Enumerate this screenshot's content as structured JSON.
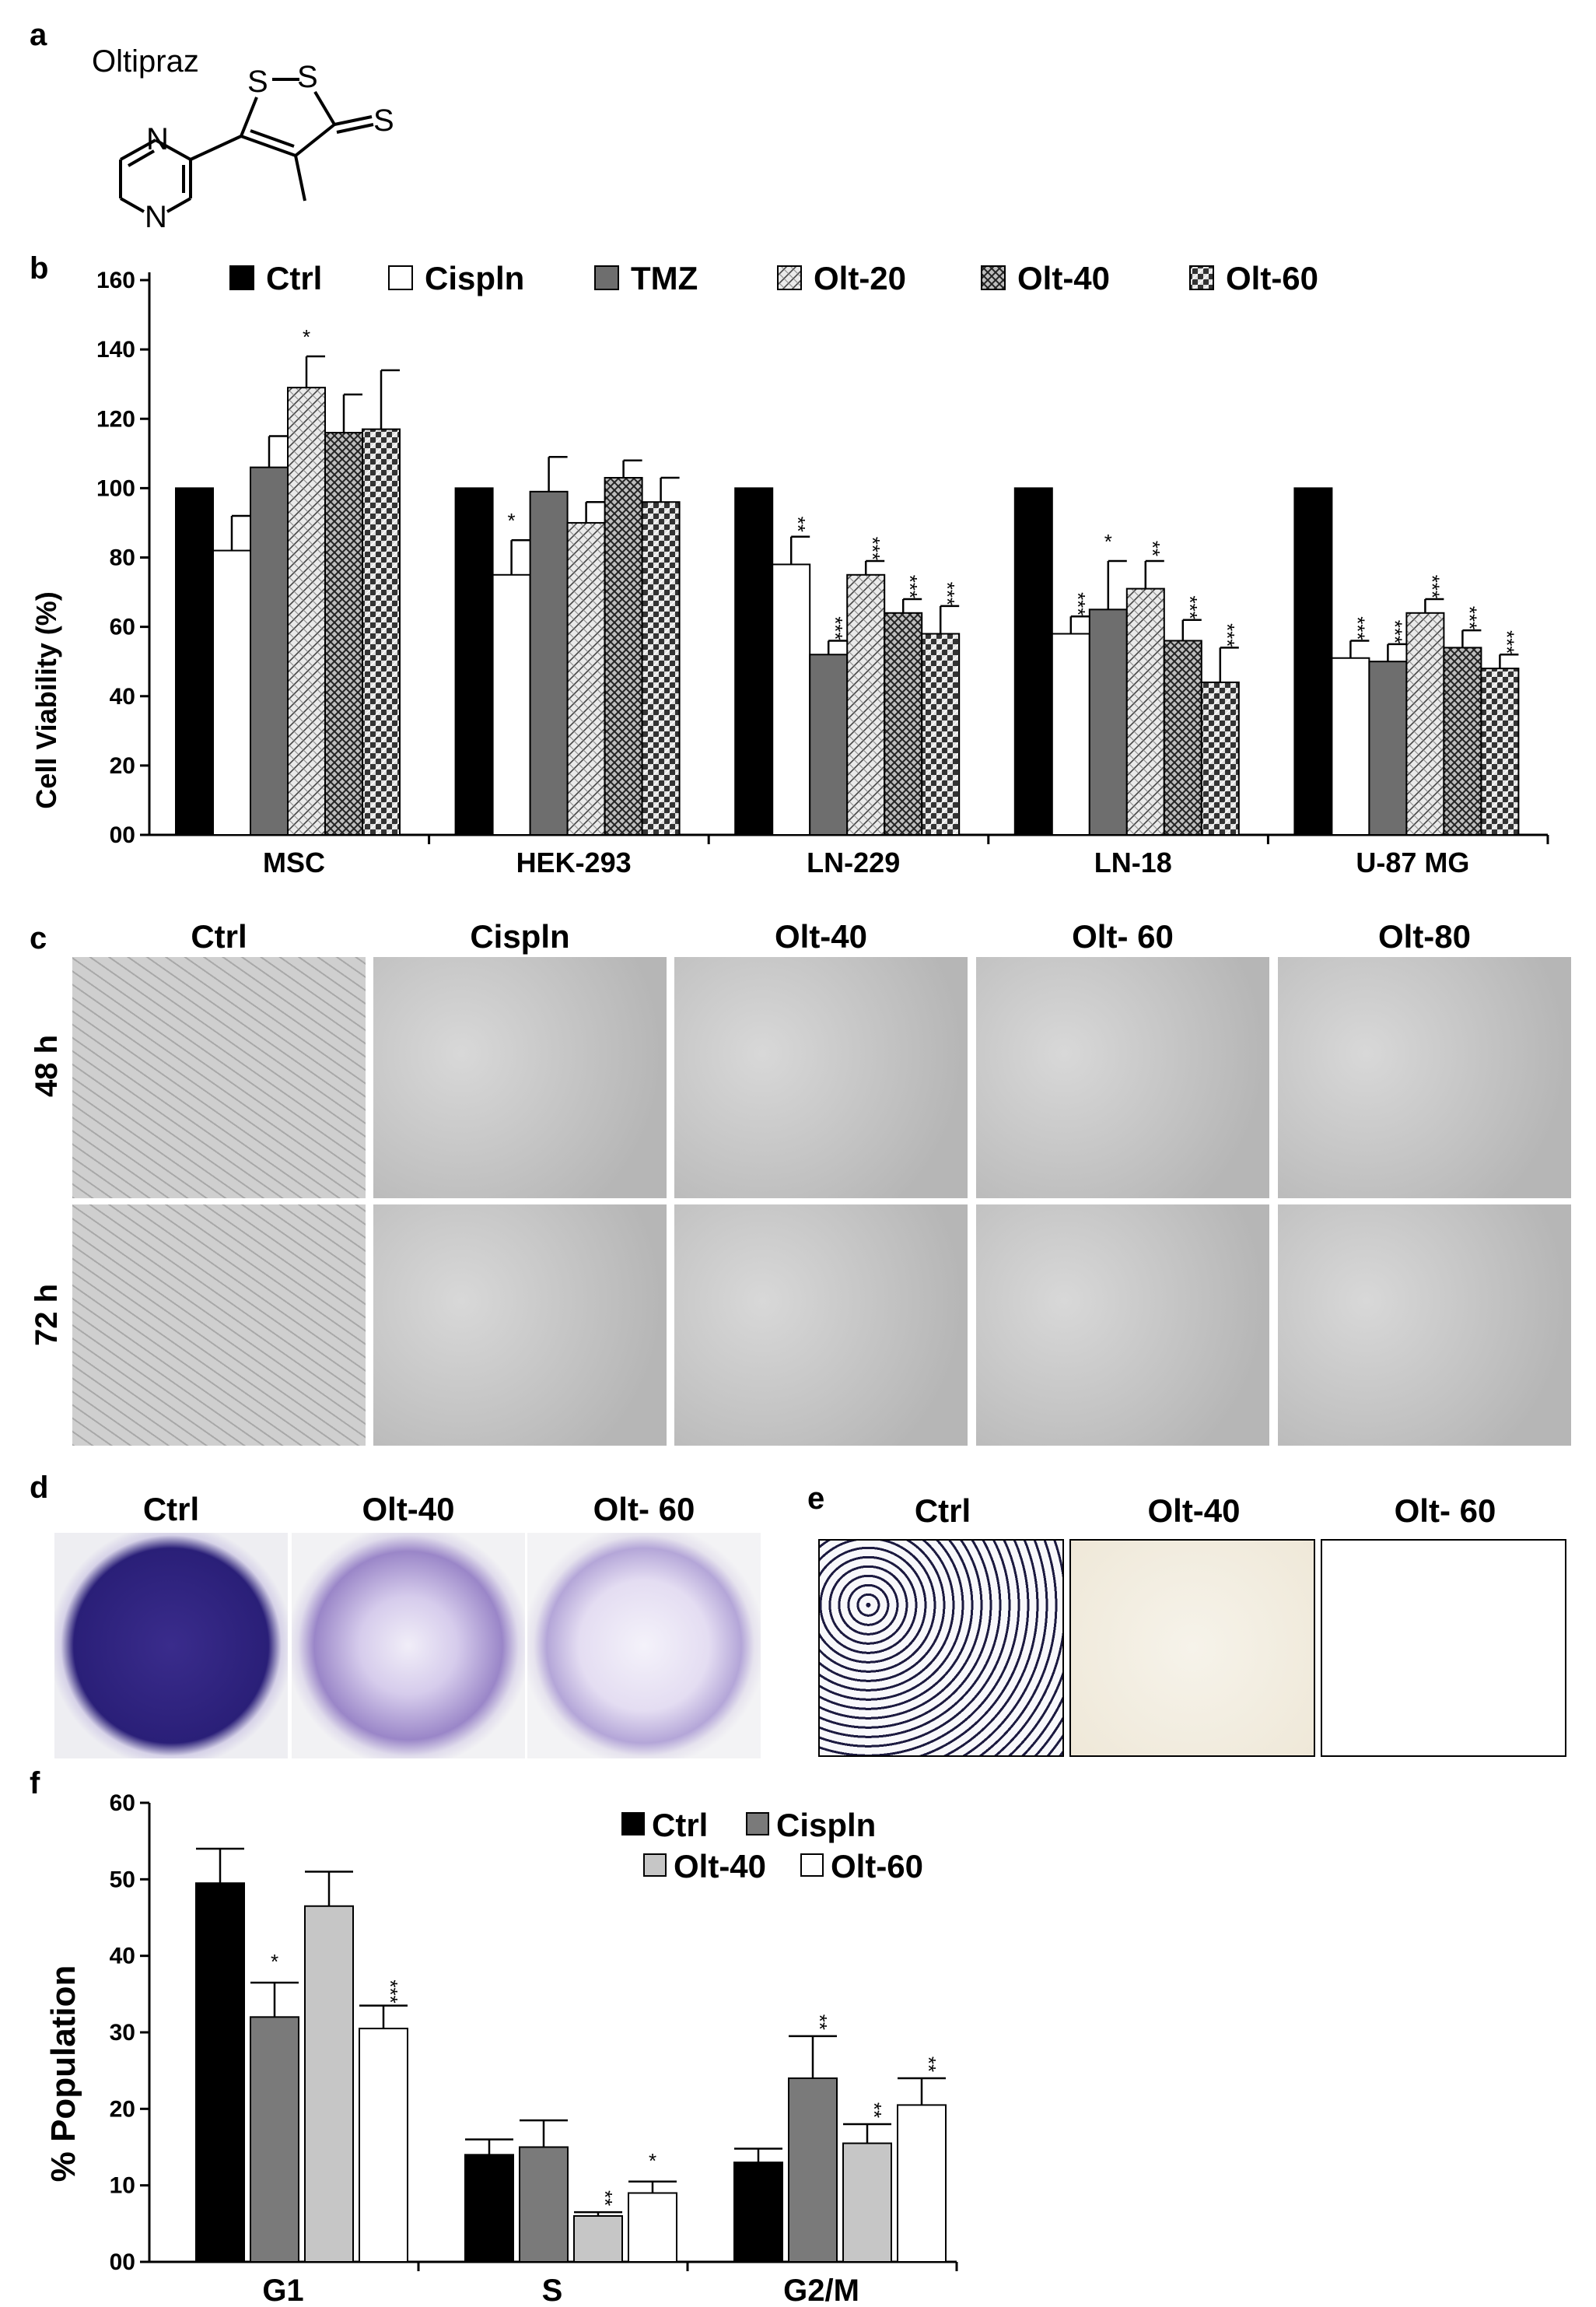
{
  "panels": {
    "a": {
      "label": "a",
      "compound_name": "Oltipraz",
      "atoms": {
        "s1": "S",
        "s2": "S",
        "s3": "S",
        "n1": "N",
        "n2": "N"
      }
    },
    "b": {
      "label": "b",
      "chart_data": {
        "type": "bar",
        "ylabel": "Cell Viability (%)",
        "ylim": [
          0,
          160
        ],
        "yticks": [
          "00",
          "20",
          "40",
          "60",
          "80",
          "100",
          "120",
          "140",
          "160"
        ],
        "categories": [
          "MSC",
          "HEK-293",
          "LN-229",
          "LN-18",
          "U-87 MG"
        ],
        "legend_position": "top",
        "series": [
          {
            "name": "Ctrl",
            "pattern": "solid-black",
            "values": [
              100,
              100,
              100,
              100,
              100
            ],
            "errors": [
              0,
              0,
              0,
              0,
              0
            ],
            "stars": [
              "",
              "",
              "",
              "",
              ""
            ]
          },
          {
            "name": "Cispln",
            "pattern": "white",
            "values": [
              82,
              75,
              78,
              58,
              51
            ],
            "errors": [
              10,
              10,
              8,
              5,
              5
            ],
            "stars": [
              "",
              "*",
              "**",
              "***",
              "***"
            ]
          },
          {
            "name": "TMZ",
            "pattern": "solid-gray",
            "values": [
              106,
              99,
              52,
              65,
              50
            ],
            "errors": [
              9,
              10,
              4,
              14,
              5
            ],
            "stars": [
              "",
              "",
              "***",
              "*",
              "***"
            ]
          },
          {
            "name": "Olt-20",
            "pattern": "light-hatch",
            "values": [
              129,
              90,
              75,
              71,
              64
            ],
            "errors": [
              9,
              6,
              4,
              8,
              4
            ],
            "stars": [
              "*",
              "",
              "***",
              "**",
              "***"
            ]
          },
          {
            "name": "Olt-40",
            "pattern": "dense-check",
            "values": [
              116,
              103,
              64,
              56,
              54
            ],
            "errors": [
              11,
              5,
              4,
              6,
              5
            ],
            "stars": [
              "",
              "",
              "***",
              "***",
              "***"
            ]
          },
          {
            "name": "Olt-60",
            "pattern": "dark-check",
            "values": [
              117,
              96,
              58,
              44,
              48
            ],
            "errors": [
              17,
              7,
              8,
              10,
              4
            ],
            "stars": [
              "",
              "",
              "***",
              "***",
              "***"
            ]
          }
        ]
      }
    },
    "c": {
      "label": "c",
      "columns": [
        "Ctrl",
        "Cispln",
        "Olt-40",
        "Olt- 60",
        "Olt-80"
      ],
      "rows": [
        "48 h",
        "72 h"
      ]
    },
    "d": {
      "label": "d",
      "columns": [
        "Ctrl",
        "Olt-40",
        "Olt- 60"
      ]
    },
    "e": {
      "label": "e",
      "columns": [
        "Ctrl",
        "Olt-40",
        "Olt- 60"
      ]
    },
    "f": {
      "label": "f",
      "chart_data": {
        "type": "bar",
        "ylabel": "% Population",
        "ylim": [
          0,
          60
        ],
        "yticks": [
          "00",
          "10",
          "20",
          "30",
          "40",
          "50",
          "60"
        ],
        "categories": [
          "G1",
          "S",
          "G2/M"
        ],
        "legend_position": "top-right",
        "series": [
          {
            "name": "Ctrl",
            "color": "#000000",
            "values": [
              49.5,
              14,
              13
            ],
            "errors": [
              4.5,
              2,
              1.8
            ],
            "stars": [
              "",
              "",
              ""
            ]
          },
          {
            "name": "Cispln",
            "color": "#7a7a7a",
            "values": [
              32,
              15,
              24
            ],
            "errors": [
              4.5,
              3.5,
              5.5
            ],
            "stars": [
              "*",
              "",
              "**"
            ]
          },
          {
            "name": "Olt-40",
            "color": "#c6c6c6",
            "values": [
              46.5,
              6,
              15.5
            ],
            "errors": [
              4.5,
              0.5,
              2.5
            ],
            "stars": [
              "",
              "**",
              "**"
            ]
          },
          {
            "name": "Olt-60",
            "color": "#ffffff",
            "values": [
              30.5,
              9,
              20.5
            ],
            "errors": [
              3,
              1.5,
              3.5
            ],
            "stars": [
              "***",
              "*",
              "**"
            ]
          }
        ]
      }
    }
  }
}
